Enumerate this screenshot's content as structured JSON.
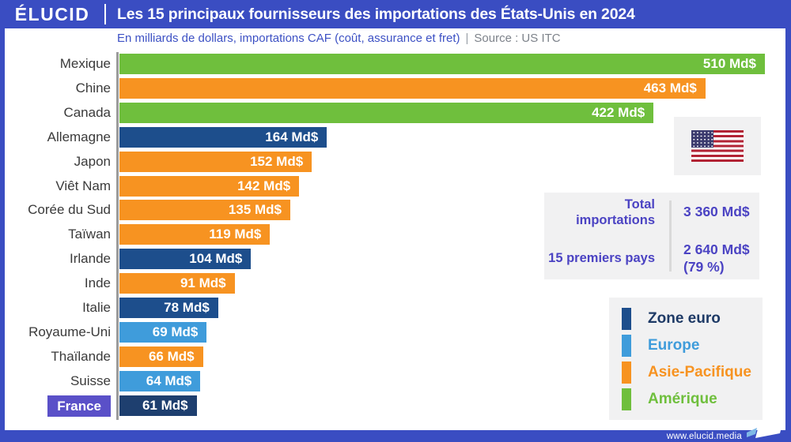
{
  "header": {
    "brand": "ÉLUCID",
    "title": "Les 15 principaux fournisseurs des importations des États-Unis en 2024"
  },
  "subtitle": {
    "unit": "En milliards de dollars, importations CAF (coût, assurance et fret)",
    "separator": "|",
    "source": "Source : US ITC"
  },
  "chart_data": {
    "type": "bar",
    "orientation": "horizontal",
    "title": "Les 15 principaux fournisseurs des importations des États-Unis en 2024",
    "unit": "Md$",
    "xlim": [
      0,
      510
    ],
    "categories": [
      "Mexique",
      "Chine",
      "Canada",
      "Allemagne",
      "Japon",
      "Viêt Nam",
      "Corée du Sud",
      "Taïwan",
      "Irlande",
      "Inde",
      "Italie",
      "Royaume-Uni",
      "Thaïlande",
      "Suisse",
      "France"
    ],
    "values": [
      510,
      463,
      422,
      164,
      152,
      142,
      135,
      119,
      104,
      91,
      78,
      69,
      66,
      64,
      61
    ],
    "regions": [
      "Amérique",
      "Asie-Pacifique",
      "Amérique",
      "Zone euro",
      "Asie-Pacifique",
      "Asie-Pacifique",
      "Asie-Pacifique",
      "Asie-Pacifique",
      "Zone euro",
      "Asie-Pacifique",
      "Zone euro",
      "Europe",
      "Asie-Pacifique",
      "Europe",
      "Zone euro"
    ],
    "region_colors": {
      "Zone euro": "#1d4e8c",
      "Europe": "#3f9cdb",
      "Asie-Pacifique": "#f79321",
      "Amérique": "#6fbf3d"
    },
    "highlight_category": "France",
    "highlight_bar_color": "#1e3f6f",
    "highlight_label_bg": "#5a50c8"
  },
  "stats": {
    "rows": [
      {
        "label": "Total importations",
        "value": "3 360 Md$",
        "note": ""
      },
      {
        "label": "15 premiers pays",
        "value": "2 640 Md$",
        "note": "(79 %)"
      }
    ]
  },
  "legend": {
    "items": [
      {
        "label": "Zone euro",
        "color": "#1d4e8c",
        "text_color": "#1e3a66"
      },
      {
        "label": "Europe",
        "color": "#3f9cdb",
        "text_color": "#3f9cdb"
      },
      {
        "label": "Asie-Pacifique",
        "color": "#f79321",
        "text_color": "#f79321"
      },
      {
        "label": "Amérique",
        "color": "#6fbf3d",
        "text_color": "#6fbf3d"
      }
    ]
  },
  "icons": {
    "flag": "usa-flag-icon",
    "footer_mark": "elucid-mark-icon"
  },
  "footer": {
    "url": "www.elucid.media"
  }
}
